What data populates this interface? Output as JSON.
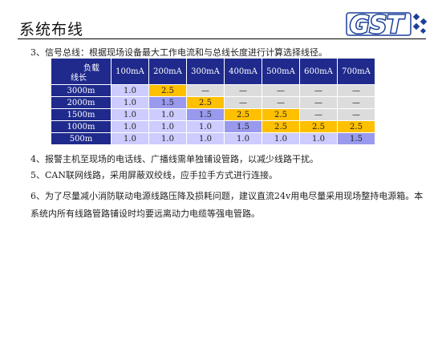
{
  "page": {
    "title": "系统布线",
    "logo_text": "GST"
  },
  "paragraphs": {
    "p1": "3、信号总线：根据现场设备最大工作电流和与总线长度进行计算选择线径。",
    "p2": "4、报警主机至现场的电话线、广播线需单独铺设管路，以减少线路干扰。",
    "p3": "5、CAN联网线路，采用屏蔽双绞线，应手拉手方式进行连接。",
    "p4": "6、为了尽量减小消防联动电源线路压降及损耗问题，建议直流24v用电尽量采用现场整持电源箱。本系统内所有线路管路铺设时均要远离动力电缆等强电管路。"
  },
  "table": {
    "corner_top": "负载",
    "corner_bottom": "线长",
    "columns": [
      "100mA",
      "200mA",
      "300mA",
      "400mA",
      "500mA",
      "600mA",
      "700mA"
    ],
    "rows": [
      {
        "label": "3000m",
        "cells": [
          "1.0",
          "2.5",
          "—",
          "—",
          "—",
          "—",
          "—"
        ]
      },
      {
        "label": "2000m",
        "cells": [
          "1.0",
          "1.5",
          "2.5",
          "—",
          "—",
          "—",
          "—"
        ]
      },
      {
        "label": "1500m",
        "cells": [
          "1.0",
          "1.0",
          "1.5",
          "2.5",
          "2.5",
          "—",
          "—"
        ]
      },
      {
        "label": "1000m",
        "cells": [
          "1.0",
          "1.0",
          "1.0",
          "1.5",
          "2.5",
          "2.5",
          "2.5"
        ]
      },
      {
        "label": "500m",
        "cells": [
          "1.0",
          "1.0",
          "1.0",
          "1.0",
          "1.0",
          "1.0",
          "1.5"
        ]
      }
    ]
  },
  "colors": {
    "header_bg": "#1f2a8c",
    "value_1_0": "#ccccff",
    "value_1_5": "#9999ee",
    "value_2_5": "#ffc000",
    "empty": "#dcdcdc",
    "logo_blue": "#1b3f99"
  }
}
